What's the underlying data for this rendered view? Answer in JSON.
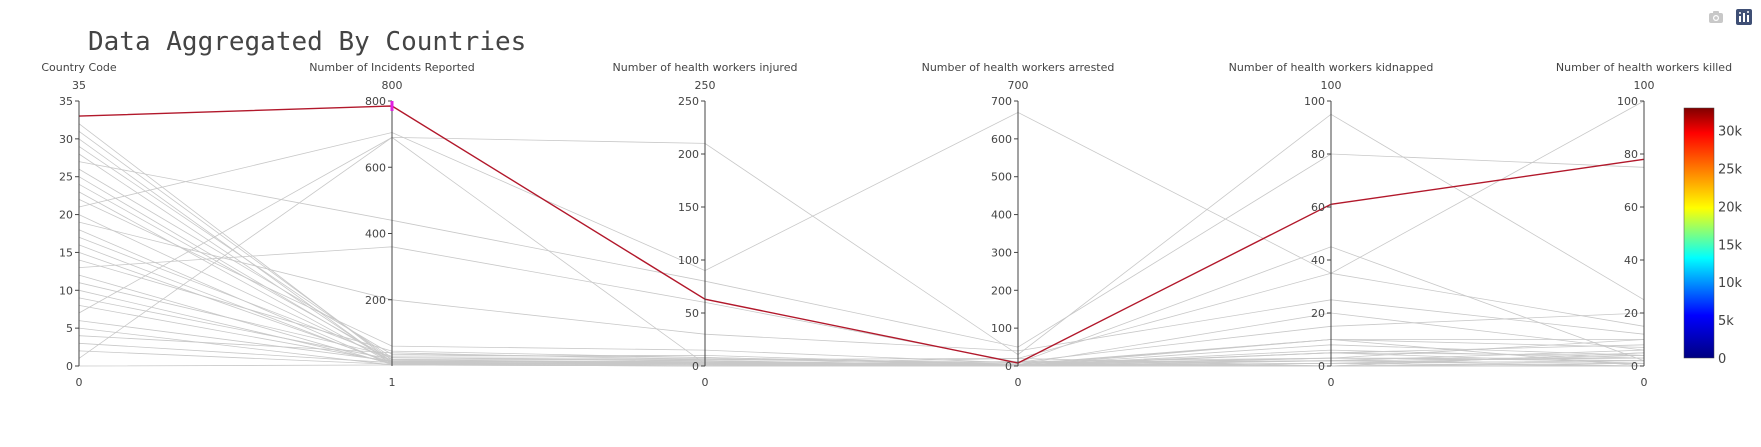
{
  "modebar": {
    "buttons": [
      {
        "name": "camera-icon"
      },
      {
        "name": "plotly-logo-icon"
      }
    ]
  },
  "colors": {
    "highlight": "#b2182b",
    "context": "#c8c8c8",
    "brush": "#e020e0",
    "axis": "#444444",
    "colorscale": [
      "#000080",
      "#0000ff",
      "#00ffff",
      "#ffff00",
      "#ff8000",
      "#ff0000",
      "#800000"
    ]
  },
  "chart_data": {
    "type": "parallel_coordinates",
    "title": "Data Aggregated By Countries",
    "dimensions": [
      {
        "label": "Country Code",
        "range": [
          0,
          35
        ],
        "ticks": [
          0,
          5,
          10,
          15,
          20,
          25,
          30,
          35
        ],
        "tick_labels": [
          "0",
          "5",
          "10",
          "15",
          "20",
          "25",
          "30",
          "35"
        ],
        "top_label": "35",
        "bottom_label": "0"
      },
      {
        "label": "Number of Incidents Reported",
        "range": [
          0,
          800
        ],
        "ticks": [
          200,
          400,
          600,
          800
        ],
        "tick_labels": [
          "200",
          "400",
          "600",
          "800"
        ],
        "top_label": "800",
        "bottom_label": "1"
      },
      {
        "label": "Number of health workers injured",
        "range": [
          0,
          250
        ],
        "ticks": [
          0,
          50,
          100,
          150,
          200,
          250
        ],
        "tick_labels": [
          "0",
          "50",
          "100",
          "150",
          "200",
          "250"
        ],
        "top_label": "250",
        "bottom_label": "0"
      },
      {
        "label": "Number of health workers arrested",
        "range": [
          0,
          700
        ],
        "ticks": [
          0,
          100,
          200,
          300,
          400,
          500,
          600,
          700
        ],
        "tick_labels": [
          "0",
          "100",
          "200",
          "300",
          "400",
          "500",
          "600",
          "700"
        ],
        "top_label": "700",
        "bottom_label": "0"
      },
      {
        "label": "Number of health workers kidnapped",
        "range": [
          0,
          100
        ],
        "ticks": [
          0,
          20,
          40,
          60,
          80,
          100
        ],
        "tick_labels": [
          "0",
          "20",
          "40",
          "60",
          "80",
          "100"
        ],
        "top_label": "100",
        "bottom_label": "0"
      },
      {
        "label": "Number of health workers killed",
        "range": [
          0,
          100
        ],
        "ticks": [
          0,
          20,
          40,
          60,
          80,
          100
        ],
        "tick_labels": [
          "0",
          "20",
          "40",
          "60",
          "80",
          "100"
        ],
        "top_label": "100",
        "bottom_label": "0"
      }
    ],
    "brush": {
      "dimension": 1,
      "range": [
        770,
        800
      ]
    },
    "highlighted": [
      {
        "values": [
          33,
          785,
          63,
          8,
          61,
          78
        ],
        "color_value": 33000
      }
    ],
    "context_lines": [
      [
        1,
        690,
        2,
        12,
        3,
        10
      ],
      [
        2,
        5,
        4,
        3,
        1,
        2
      ],
      [
        3,
        10,
        1,
        5,
        10,
        0
      ],
      [
        4,
        40,
        6,
        20,
        35,
        15
      ],
      [
        5,
        3,
        0,
        0,
        0,
        1
      ],
      [
        6,
        15,
        3,
        1,
        5,
        4
      ],
      [
        7,
        690,
        210,
        30,
        95,
        25
      ],
      [
        8,
        12,
        5,
        2,
        3,
        2
      ],
      [
        9,
        20,
        2,
        10,
        0,
        5
      ],
      [
        10,
        8,
        0,
        4,
        20,
        6
      ],
      [
        11,
        30,
        10,
        3,
        5,
        8
      ],
      [
        12,
        5,
        1,
        0,
        2,
        0
      ],
      [
        13,
        360,
        60,
        10,
        15,
        20
      ],
      [
        14,
        45,
        8,
        5,
        3,
        3
      ],
      [
        15,
        10,
        2,
        20,
        0,
        1
      ],
      [
        16,
        6,
        3,
        1,
        8,
        4
      ],
      [
        17,
        25,
        5,
        0,
        10,
        10
      ],
      [
        18,
        4,
        0,
        2,
        0,
        0
      ],
      [
        19,
        200,
        30,
        40,
        25,
        12
      ],
      [
        20,
        15,
        4,
        5,
        2,
        6
      ],
      [
        21,
        705,
        90,
        670,
        35,
        100
      ],
      [
        22,
        60,
        15,
        8,
        45,
        2
      ],
      [
        23,
        8,
        2,
        0,
        5,
        1
      ],
      [
        24,
        20,
        6,
        10,
        2,
        3
      ],
      [
        25,
        14,
        3,
        2,
        1,
        4
      ],
      [
        26,
        35,
        8,
        3,
        10,
        7
      ],
      [
        27,
        440,
        80,
        50,
        80,
        75
      ],
      [
        28,
        10,
        2,
        1,
        3,
        2
      ],
      [
        29,
        25,
        7,
        5,
        0,
        5
      ],
      [
        30,
        5,
        1,
        0,
        1,
        0
      ],
      [
        31,
        18,
        4,
        2,
        6,
        3
      ],
      [
        32,
        12,
        3,
        1,
        2,
        1
      ],
      [
        0,
        3,
        0,
        0,
        0,
        0
      ]
    ],
    "colorbar": {
      "range": [
        0,
        33000
      ],
      "ticks": [
        0,
        5000,
        10000,
        15000,
        20000,
        25000,
        30000
      ],
      "tick_labels": [
        "0",
        "5k",
        "10k",
        "15k",
        "20k",
        "25k",
        "30k"
      ]
    }
  }
}
